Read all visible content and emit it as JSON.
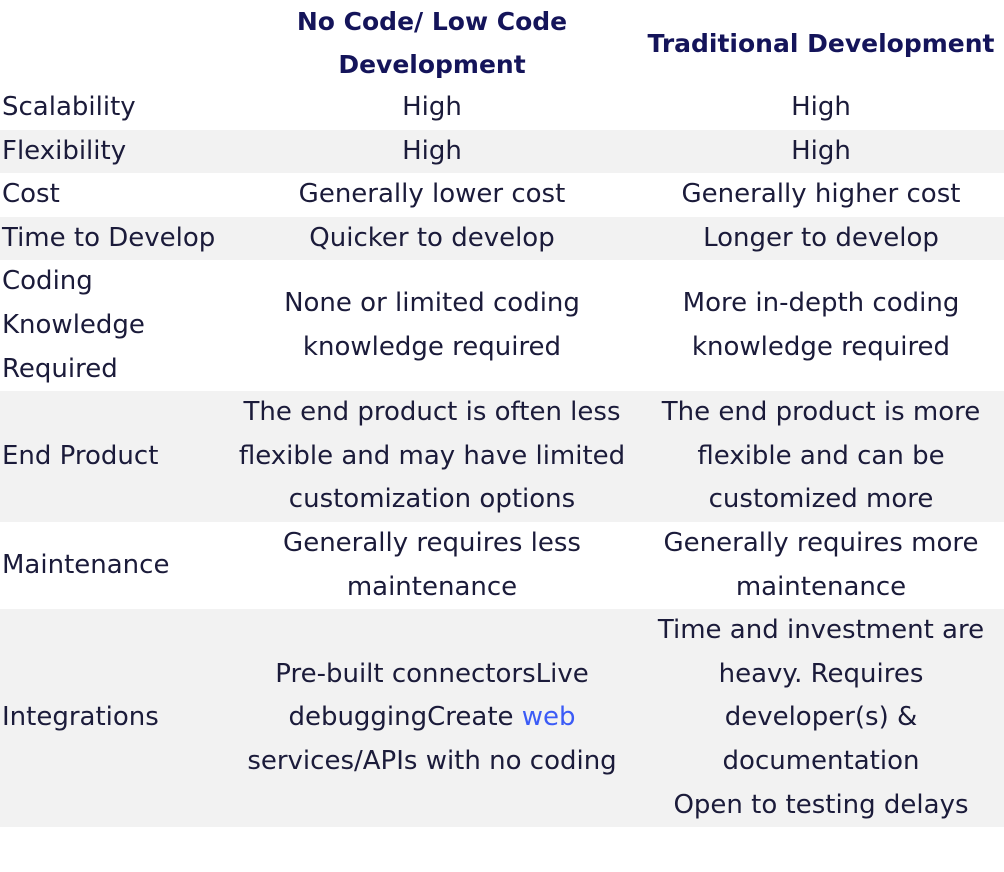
{
  "table": {
    "headers": [
      "",
      "No Code/ Low Code Development",
      "Traditional Development"
    ],
    "header_lines": {
      "nocode": [
        "No Code/ Low Code",
        "Development"
      ],
      "traditional": "Traditional Development"
    },
    "rows": [
      {
        "label": "Scalability",
        "nocode": "High",
        "traditional": "High"
      },
      {
        "label": "Flexibility",
        "nocode": "High",
        "traditional": "High"
      },
      {
        "label": "Cost",
        "nocode": "Generally lower cost",
        "traditional": "Generally higher cost"
      },
      {
        "label": "Time to Develop",
        "nocode": "Quicker to develop",
        "traditional": "Longer to develop"
      },
      {
        "label": "Coding Knowledge Required",
        "nocode": "None or limited coding knowledge required",
        "traditional": "More in-depth coding knowledge required"
      },
      {
        "label": "End Product",
        "nocode": "The end product is often less flexible and may have limited customization options",
        "traditional": "The end product is more flexible and can be customized more"
      },
      {
        "label": "Maintenance",
        "nocode": "Generally requires less maintenance",
        "traditional": "Generally requires more maintenance"
      },
      {
        "label": "Integrations",
        "nocode_parts": {
          "before_link": "Pre-built connectorsLive debuggingCreate ",
          "link": "web",
          "after_link": " services/APIs with no coding"
        },
        "traditional_parts": {
          "main": "Time and investment are heavy. Requires developer(s) & documentation",
          "extra": "Open to testing delays"
        }
      }
    ]
  },
  "colors": {
    "header_text": "#14145a",
    "body_text": "#1b1b3a",
    "row_shade": "#f2f2f2",
    "link": "#3b5bf6"
  }
}
